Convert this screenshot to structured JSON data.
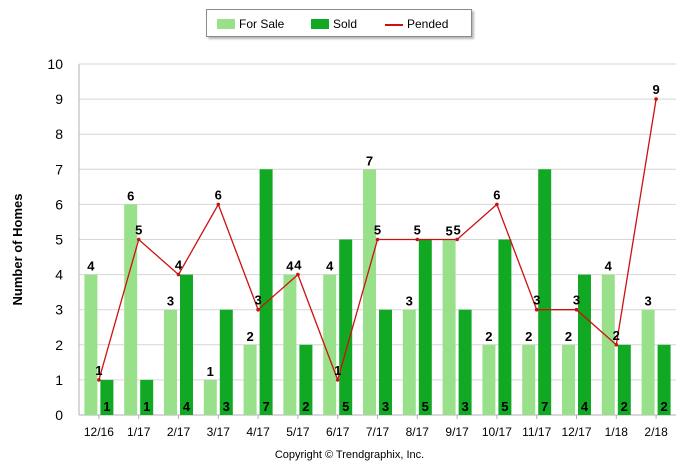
{
  "chart_data": {
    "type": "bar",
    "categories": [
      "12/16",
      "1/17",
      "2/17",
      "3/17",
      "4/17",
      "5/17",
      "6/17",
      "7/17",
      "8/17",
      "9/17",
      "10/17",
      "11/17",
      "12/17",
      "1/18",
      "2/18"
    ],
    "series": [
      {
        "name": "For Sale",
        "kind": "bar",
        "color": "#99e08a",
        "values": [
          4,
          6,
          3,
          1,
          2,
          4,
          4,
          7,
          3,
          5,
          2,
          2,
          2,
          4,
          3
        ]
      },
      {
        "name": "Sold",
        "kind": "bar",
        "color": "#11a823",
        "values": [
          1,
          1,
          4,
          3,
          7,
          2,
          5,
          3,
          5,
          3,
          5,
          7,
          4,
          2,
          2
        ]
      },
      {
        "name": "Pended",
        "kind": "line",
        "color": "#cc1111",
        "values": [
          1,
          5,
          4,
          6,
          3,
          4,
          1,
          5,
          5,
          5,
          6,
          3,
          3,
          2,
          9
        ]
      }
    ],
    "ylabel": "Number of Homes",
    "xlabel": "",
    "ylim": [
      0,
      10
    ],
    "yticks": [
      0,
      1,
      2,
      3,
      4,
      5,
      6,
      7,
      8,
      9,
      10
    ],
    "grid": true,
    "legend_position": "top-center"
  },
  "legend": {
    "for_sale_label": "For Sale",
    "sold_label": "Sold",
    "pended_label": "Pended"
  },
  "footer": {
    "copyright": "Copyright © Trendgraphix, Inc."
  },
  "colors": {
    "for_sale": "#99e08a",
    "sold": "#11a823",
    "pended": "#cc1111"
  }
}
